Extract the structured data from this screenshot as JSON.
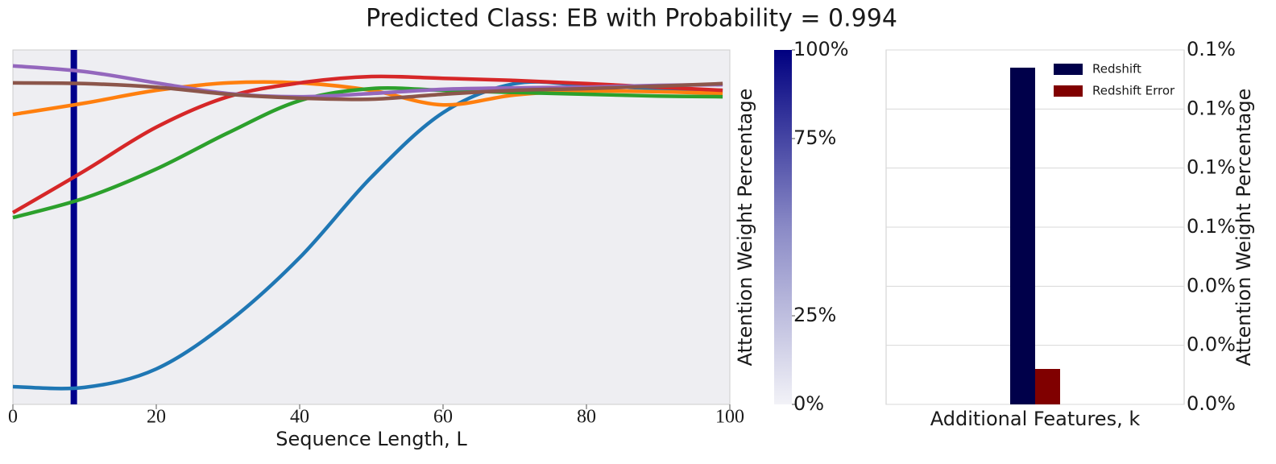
{
  "title": "Predicted Class: EB with Probability = 0.994",
  "chart_data": [
    {
      "type": "line",
      "xlabel": "Sequence Length, L",
      "x": [
        0,
        10,
        20,
        30,
        40,
        50,
        60,
        70,
        80,
        90,
        99
      ],
      "xlim": [
        0,
        100
      ],
      "xticks": [
        0,
        20,
        40,
        60,
        80,
        100
      ],
      "ylim": [
        0,
        1
      ],
      "vline": {
        "x": 8.5,
        "color": "#00008b"
      },
      "series": [
        {
          "color": "#1f77b4",
          "values": [
            0.05,
            0.048,
            0.1,
            0.232,
            0.414,
            0.641,
            0.823,
            0.905,
            0.9,
            0.891,
            0.886
          ]
        },
        {
          "color": "#ff7f0e",
          "values": [
            0.818,
            0.85,
            0.886,
            0.907,
            0.907,
            0.886,
            0.845,
            0.873,
            0.884,
            0.882,
            0.877
          ]
        },
        {
          "color": "#2ca02c",
          "values": [
            0.527,
            0.582,
            0.664,
            0.766,
            0.857,
            0.891,
            0.886,
            0.88,
            0.875,
            0.87,
            0.868
          ]
        },
        {
          "color": "#d62728",
          "values": [
            0.541,
            0.659,
            0.782,
            0.868,
            0.907,
            0.925,
            0.92,
            0.914,
            0.905,
            0.895,
            0.886
          ]
        },
        {
          "color": "#9467bd",
          "values": [
            0.955,
            0.939,
            0.907,
            0.877,
            0.868,
            0.877,
            0.889,
            0.893,
            0.895,
            0.9,
            0.902
          ]
        },
        {
          "color": "#8c564b",
          "values": [
            0.907,
            0.905,
            0.895,
            0.875,
            0.864,
            0.861,
            0.875,
            0.886,
            0.891,
            0.898,
            0.905
          ]
        }
      ]
    },
    {
      "type": "colorbar",
      "ylabel": "Attention Weight Percentage",
      "ylim": [
        0,
        100
      ],
      "yticks": [
        {
          "value": 0,
          "label": "0%"
        },
        {
          "value": 25,
          "label": "25%"
        },
        {
          "value": 75,
          "label": "75%"
        },
        {
          "value": 100,
          "label": "100%"
        }
      ],
      "colors": [
        "#f2f2f7",
        "#8a8ac6",
        "#000080"
      ]
    },
    {
      "type": "bar",
      "xlabel": "Additional Features, k",
      "ylabel": "Attention Weight Percentage",
      "categories": [
        null
      ],
      "series": [
        {
          "name": "Redshift",
          "color": "#00004a",
          "values": [
            0.114
          ]
        },
        {
          "name": "Redshift Error",
          "color": "#800000",
          "values": [
            0.012
          ]
        }
      ],
      "ylim": [
        0,
        0.12
      ],
      "yticks": [
        {
          "value": 0,
          "label": "0.0%"
        },
        {
          "value": 0.02,
          "label": "0.0%"
        },
        {
          "value": 0.04,
          "label": "0.0%"
        },
        {
          "value": 0.06,
          "label": "0.1%"
        },
        {
          "value": 0.08,
          "label": "0.1%"
        },
        {
          "value": 0.1,
          "label": "0.1%"
        },
        {
          "value": 0.12,
          "label": "0.1%"
        }
      ],
      "grid": true,
      "legend": "upper right"
    }
  ]
}
